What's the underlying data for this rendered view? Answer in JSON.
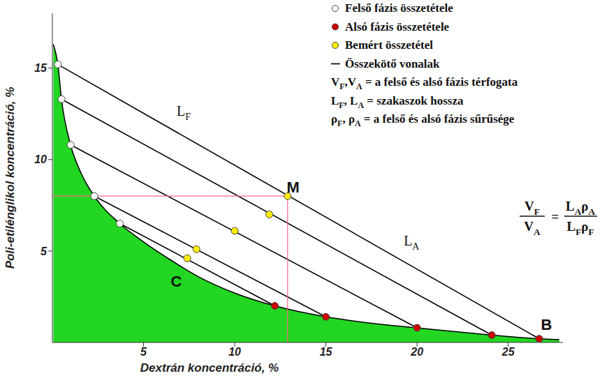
{
  "chart_data": {
    "type": "scatter",
    "x_label": "Dextrán koncentráció, %",
    "y_label": "Poli-etilénglikol koncentráció, %",
    "xlim": [
      0,
      28
    ],
    "xticks": [
      5,
      10,
      15,
      20,
      25
    ],
    "ylim": [
      0,
      18
    ],
    "yticks": [
      5,
      10,
      15
    ],
    "grid": false,
    "legend": "upper right",
    "series": [
      {
        "type": "area",
        "color": "#22d622",
        "x": [
          0.05,
          0.3,
          0.5,
          1.0,
          1.6,
          2.3,
          3.7,
          5.0,
          6.5,
          8.0,
          10.0,
          12.2,
          15.0,
          17.5,
          20.0,
          22.0,
          24.1,
          26.7,
          27.8
        ],
        "y": [
          16.3,
          15.2,
          13.3,
          10.8,
          9.2,
          8.0,
          6.5,
          5.5,
          4.5,
          3.6,
          2.7,
          2.0,
          1.4,
          1.05,
          0.8,
          0.6,
          0.4,
          0.2,
          0.15
        ]
      },
      {
        "name": "Felső fázis összetétele",
        "type": "scatter",
        "marker": "circle",
        "color": "#ffffff",
        "x": [
          0.3,
          0.5,
          1.0,
          2.3,
          3.7
        ],
        "y": [
          15.2,
          13.3,
          10.8,
          8.0,
          6.5
        ]
      },
      {
        "name": "Alsó fázis összetétele",
        "type": "scatter",
        "marker": "circle",
        "color": "#cc0000",
        "x": [
          12.2,
          15.0,
          20.0,
          24.1,
          26.7
        ],
        "y": [
          2.0,
          1.4,
          0.8,
          0.4,
          0.2
        ]
      },
      {
        "name": "Bemért összetétel",
        "type": "scatter",
        "marker": "circle",
        "color": "#ffee00",
        "x": [
          12.9,
          11.9,
          10.0,
          7.9,
          7.4
        ],
        "y": [
          8.0,
          7.0,
          6.1,
          5.1,
          4.6
        ]
      },
      {
        "name": "Összekötő vonalak",
        "type": "line",
        "line_style": "solid",
        "color": "#000000",
        "lines": [
          {
            "x": [
              0.3,
              26.7
            ],
            "y": [
              15.2,
              0.2
            ]
          },
          {
            "x": [
              0.5,
              24.1
            ],
            "y": [
              13.3,
              0.4
            ]
          },
          {
            "x": [
              1.0,
              20.0
            ],
            "y": [
              10.8,
              0.8
            ]
          },
          {
            "x": [
              2.3,
              15.0
            ],
            "y": [
              8.0,
              1.4
            ]
          },
          {
            "x": [
              3.7,
              12.2
            ],
            "y": [
              6.5,
              2.0
            ]
          }
        ]
      },
      {
        "type": "line",
        "line_style": "solid",
        "color": "#ff6688",
        "lines": [
          {
            "x": [
              0,
              12.9,
              12.9
            ],
            "y": [
              8.0,
              8.0,
              0
            ]
          }
        ]
      }
    ],
    "legend_notes": [
      [
        [
          "V",
          "F"
        ],
        [
          ",V",
          "A"
        ],
        [
          " = a felső és alsó fázis térfogata"
        ]
      ],
      [
        [
          "L",
          "F"
        ],
        [
          ", L",
          "A"
        ],
        [
          " = szakaszok hossza"
        ]
      ],
      [
        [
          "ρ",
          "F"
        ],
        [
          ", ρ",
          "A"
        ],
        [
          " = a felső és alsó fázis sűrűsége"
        ]
      ]
    ],
    "formula": {
      "lhs": {
        "numerator": [
          [
            "V",
            "F"
          ]
        ],
        "denominator": [
          [
            "V",
            "A"
          ]
        ]
      },
      "sign": "=",
      "rhs": {
        "numerator": [
          [
            "L",
            "A"
          ],
          [
            "ρ",
            "A"
          ]
        ],
        "denominator": [
          [
            "L",
            "F"
          ],
          [
            "ρ",
            "F"
          ]
        ]
      }
    },
    "annotations": [
      {
        "text": [
          [
            "L",
            "F"
          ]
        ],
        "x": 7.2,
        "y": 12.4,
        "style": "subscript"
      },
      {
        "text": [
          [
            "L",
            "A"
          ]
        ],
        "x": 19.7,
        "y": 5.3,
        "style": "subscript"
      },
      {
        "text": [
          [
            "M"
          ]
        ],
        "x": 13.2,
        "y": 8.2,
        "style": "bold"
      },
      {
        "text": [
          [
            "C"
          ]
        ],
        "x": 6.8,
        "y": 3.05,
        "style": "bold"
      },
      {
        "text": [
          [
            "B"
          ]
        ],
        "x": 27.1,
        "y": 0.7,
        "style": "bold"
      }
    ]
  }
}
